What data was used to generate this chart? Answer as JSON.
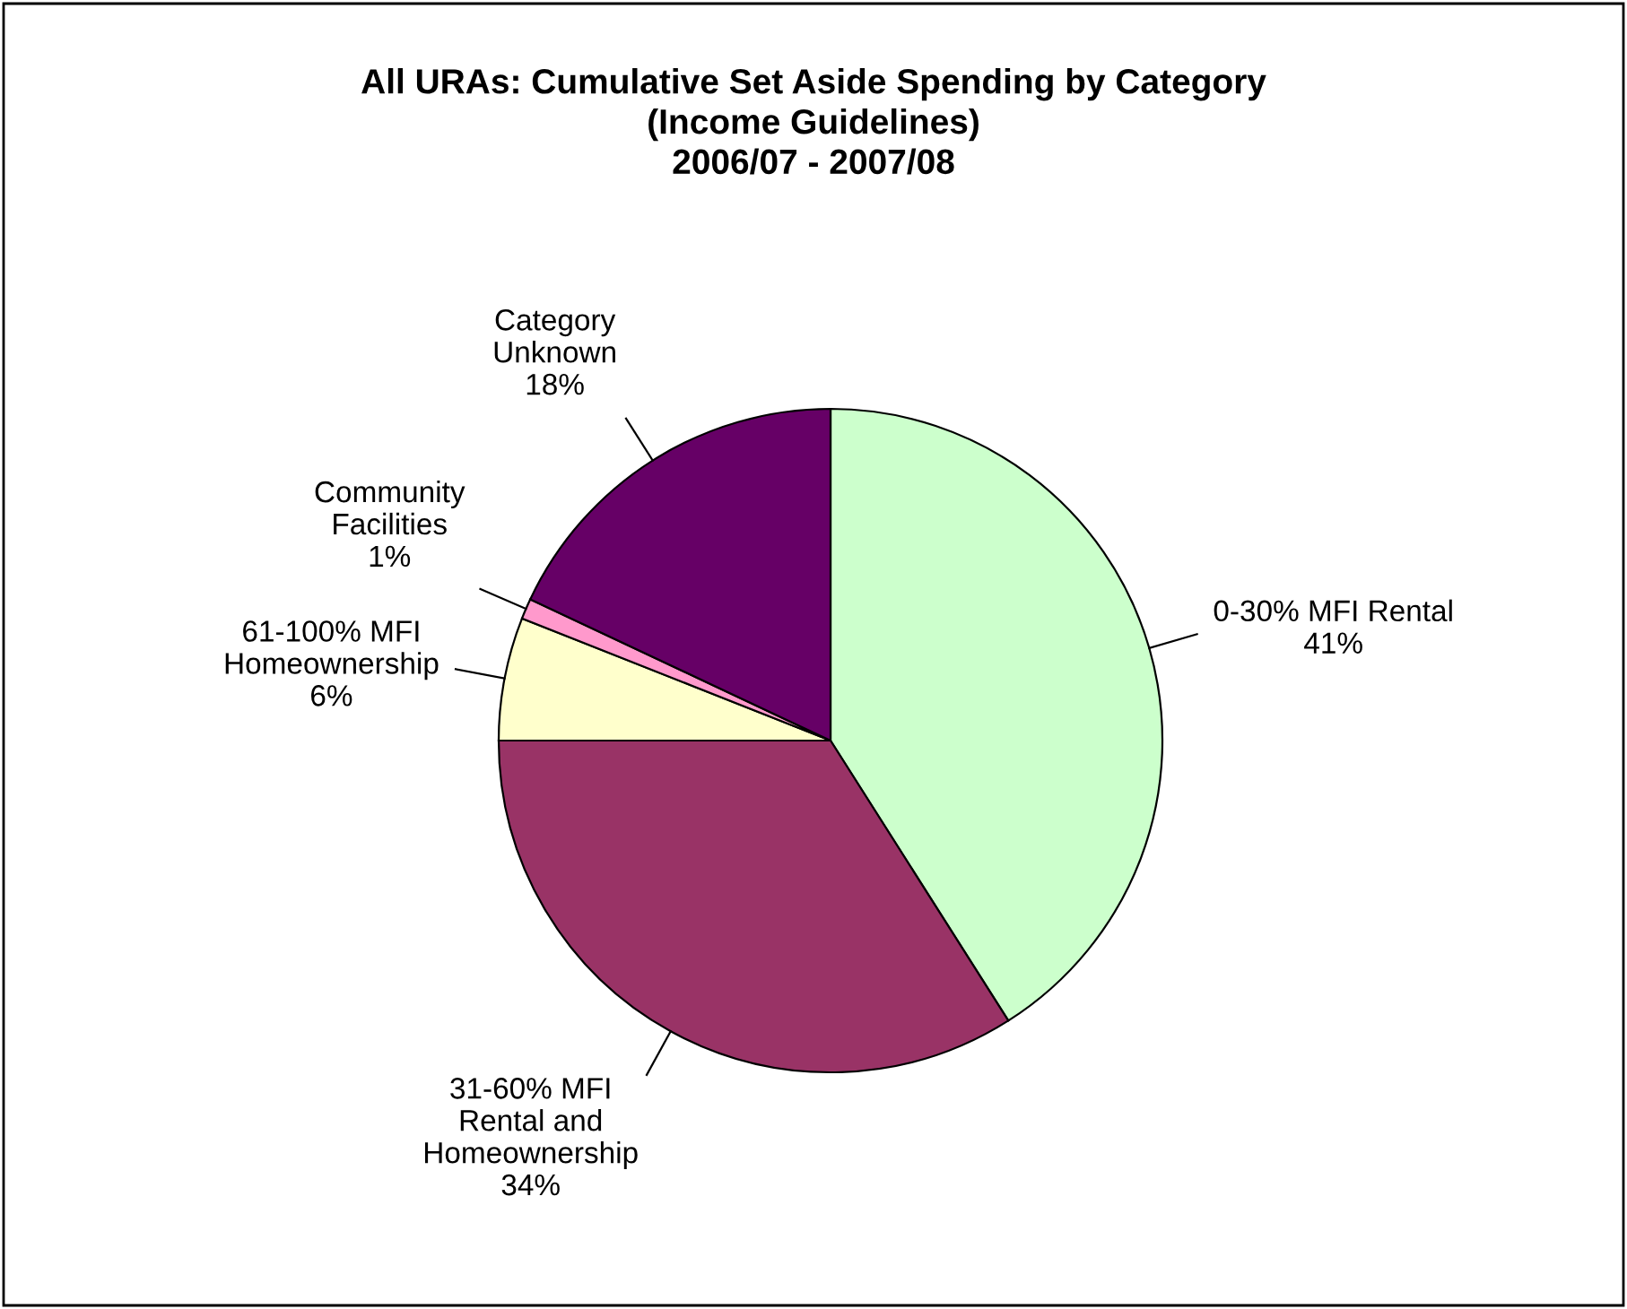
{
  "chart_data": {
    "type": "pie",
    "title": "All URAs: Cumulative Set Aside Spending by Category\n(Income Guidelines)\n2006/07 - 2007/08",
    "categories": [
      "0-30% MFI Rental",
      "31-60% MFI\nRental and\nHomeownership",
      "61-100% MFI\nHomeownership",
      "Community\nFacilities",
      "Category\nUnknown"
    ],
    "values": [
      41,
      34,
      6,
      1,
      18
    ],
    "value_labels": [
      "41%",
      "34%",
      "6%",
      "1%",
      "18%"
    ],
    "colors": [
      "#ccffcc",
      "#993366",
      "#ffffcc",
      "#ff99cc",
      "#660066"
    ]
  }
}
